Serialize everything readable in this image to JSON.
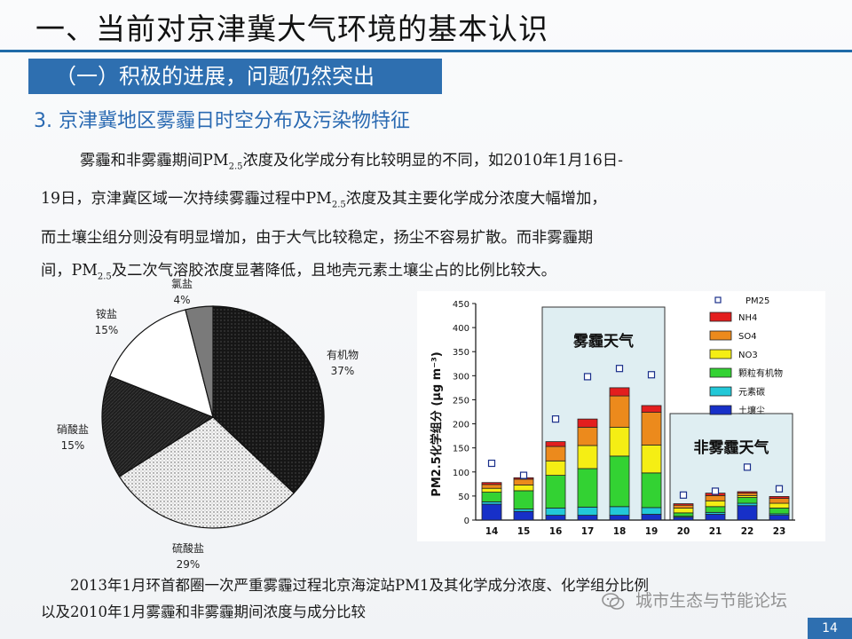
{
  "slide": {
    "title": "一、当前对京津冀大气环境的基本认识",
    "section": "（一）积极的进展，问题仍然突出",
    "heading": "3. 京津冀地区雾霾日时空分布及污染物特征",
    "paragraph": [
      {
        "pre": "雾霾和非雾霾期间PM",
        "sub": "2.5",
        "post": "浓度及化学成分有比较明显的不同，如2010年1月16日-"
      },
      {
        "pre": "19日，京津冀区域一次持续雾霾过程中PM",
        "sub": "2.5",
        "post": "浓度及其主要化学成分浓度大幅增加，"
      },
      {
        "pre": "而土壤尘组分则没有明显增加，由于大气比较稳定，扬尘不容易扩散。而非雾霾期",
        "sub": "",
        "post": ""
      },
      {
        "pre": "间，PM",
        "sub": "2.5",
        "post": "及二次气溶胶浓度显著降低，且地壳元素土壤尘占的比例比较大。"
      }
    ],
    "caption": [
      "2013年1月环首都圈一次严重雾霾过程北京海淀站PM1及其化学成分浓度、化学组分比例",
      "以及2010年1月雾霾和非雾霾期间浓度与成分比较"
    ],
    "watermark": "城市生态与节能论坛",
    "page_number": "14"
  },
  "chart_data": [
    {
      "type": "pie",
      "slices": [
        {
          "label": "有机物",
          "percent_label": "37%",
          "value": 37,
          "pattern": "dots-dark"
        },
        {
          "label": "硫酸盐",
          "percent_label": "29%",
          "value": 29,
          "pattern": "dots-light"
        },
        {
          "label": "硝酸盐",
          "percent_label": "15%",
          "value": 15,
          "pattern": "hatch"
        },
        {
          "label": "铵盐",
          "percent_label": "15%",
          "value": 15,
          "pattern": "white"
        },
        {
          "label": "氯盐",
          "percent_label": "4%",
          "value": 4,
          "pattern": "gray"
        }
      ]
    },
    {
      "type": "bar",
      "stacked": true,
      "ylabel": "PM2.5化学组分 (μg m⁻³)",
      "ylim": [
        0,
        450
      ],
      "yticks": [
        "0",
        "50",
        "100",
        "150",
        "200",
        "250",
        "300",
        "350",
        "400",
        "450"
      ],
      "categories": [
        "14",
        "15",
        "16",
        "17",
        "18",
        "19",
        "20",
        "21",
        "22",
        "23"
      ],
      "legend": {
        "pm_marker": "PM25",
        "items": [
          "NH4",
          "SO4",
          "NO3",
          "颗粒有机物",
          "元素碳",
          "土壤尘"
        ]
      },
      "series": [
        {
          "name": "土壤尘",
          "color": "#1730c8",
          "values": [
            33,
            18,
            10,
            10,
            10,
            12,
            6,
            12,
            30,
            10
          ]
        },
        {
          "name": "元素碳",
          "color": "#22c8d8",
          "values": [
            5,
            5,
            15,
            17,
            18,
            14,
            2,
            4,
            5,
            3
          ]
        },
        {
          "name": "颗粒有机物",
          "color": "#33d233",
          "values": [
            20,
            38,
            68,
            80,
            105,
            72,
            7,
            12,
            12,
            12
          ]
        },
        {
          "name": "NO3",
          "color": "#f5ee14",
          "values": [
            8,
            12,
            30,
            48,
            60,
            58,
            10,
            12,
            4,
            10
          ]
        },
        {
          "name": "SO4",
          "color": "#ec8a1c",
          "values": [
            8,
            12,
            30,
            38,
            65,
            68,
            6,
            11,
            5,
            10
          ]
        },
        {
          "name": "NH4",
          "color": "#e31e1e",
          "values": [
            4,
            3,
            10,
            17,
            17,
            14,
            3,
            5,
            3,
            4
          ]
        }
      ],
      "pm25": [
        118,
        93,
        210,
        298,
        315,
        302,
        52,
        60,
        110,
        65
      ],
      "annotations": [
        {
          "text": "雾霾天气",
          "x_range": [
            "16",
            "19"
          ]
        },
        {
          "text": "非雾霾天气",
          "x_range": [
            "20",
            "23"
          ]
        }
      ],
      "colors": {
        "haze_panel": "#dfeef2"
      }
    }
  ]
}
